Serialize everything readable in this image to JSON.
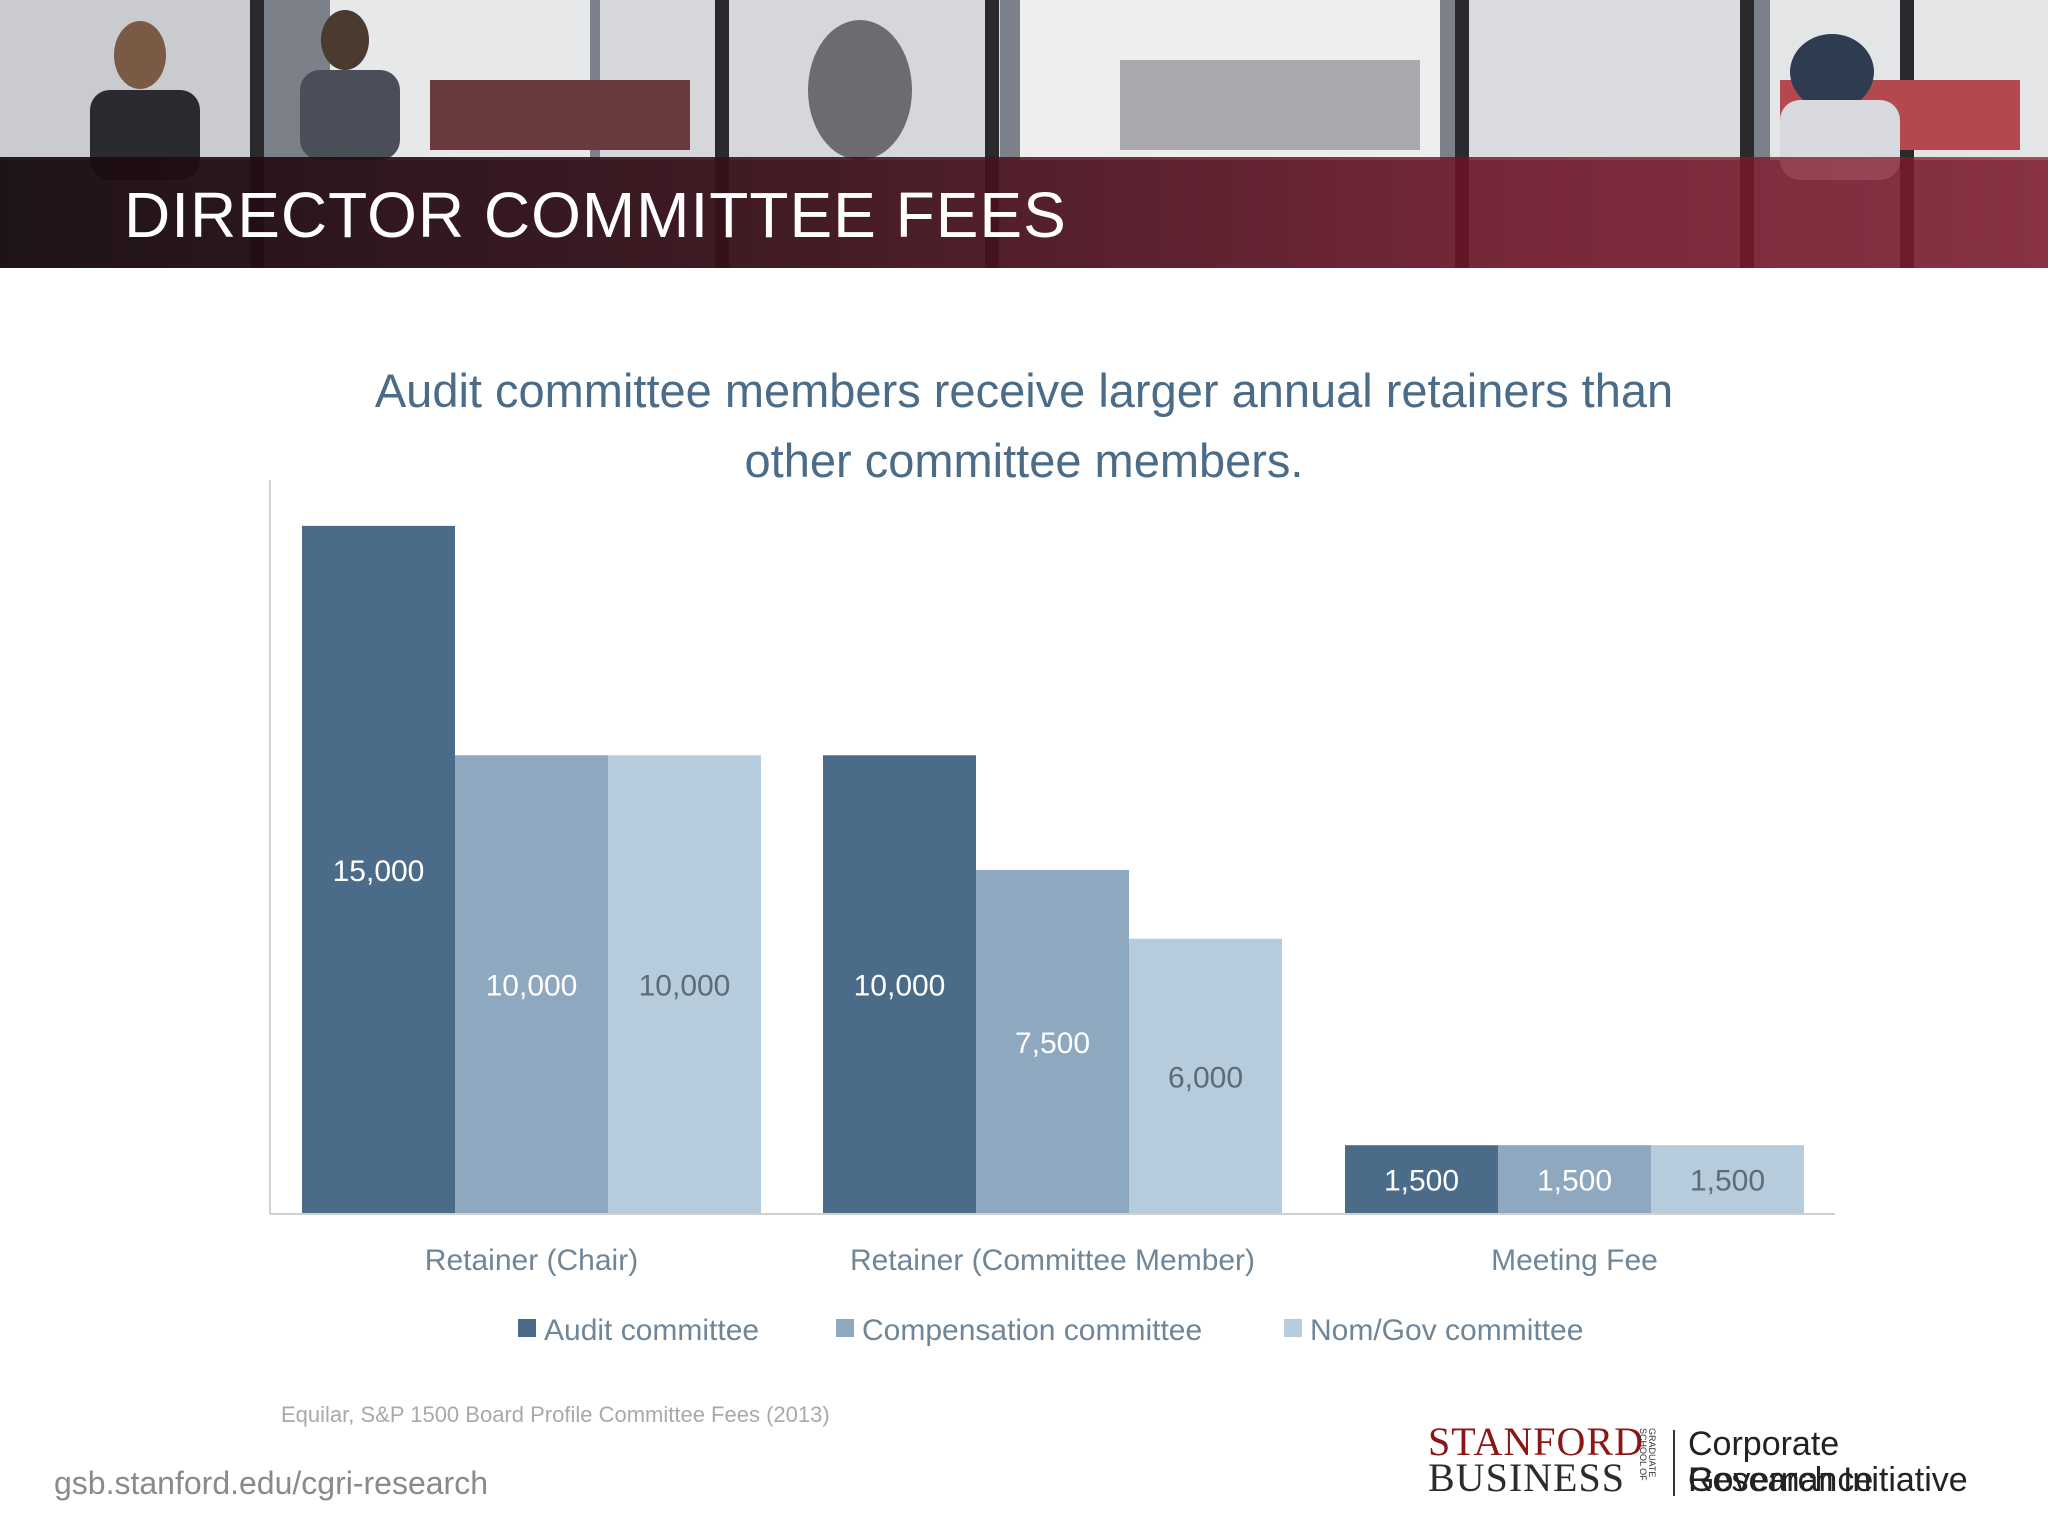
{
  "banner": {
    "title": "DIRECTOR COMMITTEE FEES"
  },
  "headline": {
    "line1": "Audit committee members receive larger annual retainers than",
    "line2": "other committee members."
  },
  "chart_data": {
    "type": "bar",
    "categories": [
      "Retainer (Chair)",
      "Retainer (Committee Member)",
      "Meeting Fee"
    ],
    "series": [
      {
        "name": "Audit committee",
        "values": [
          15000,
          10000,
          1500
        ],
        "labels": [
          "15,000",
          "10,000",
          "1,500"
        ],
        "color": "#4b6c88",
        "label_color": "#ffffff"
      },
      {
        "name": "Compensation committee",
        "values": [
          10000,
          7500,
          1500
        ],
        "labels": [
          "10,000",
          "7,500",
          "1,500"
        ],
        "color": "#8ea8c0",
        "label_color": "#ffffff"
      },
      {
        "name": "Nom/Gov committee",
        "values": [
          10000,
          6000,
          1500
        ],
        "labels": [
          "10,000",
          "6,000",
          "1,500"
        ],
        "color": "#b6cbdb",
        "label_color": "#5b6b78"
      }
    ],
    "ylim": [
      0,
      16000
    ],
    "grid": false,
    "legend": "bottom",
    "xlabel": "",
    "ylabel": ""
  },
  "source": "Equilar, S&P 1500 Board Profile Committee Fees (2013)",
  "footer": {
    "url": "gsb.stanford.edu/cgri-research",
    "logo_line1": "STANFORD",
    "logo_line2": "BUSINESS",
    "logo_small": "GRADUATE SCHOOL OF",
    "cgri_line1": "Corporate Governance",
    "cgri_line2": "Research Initiative"
  }
}
